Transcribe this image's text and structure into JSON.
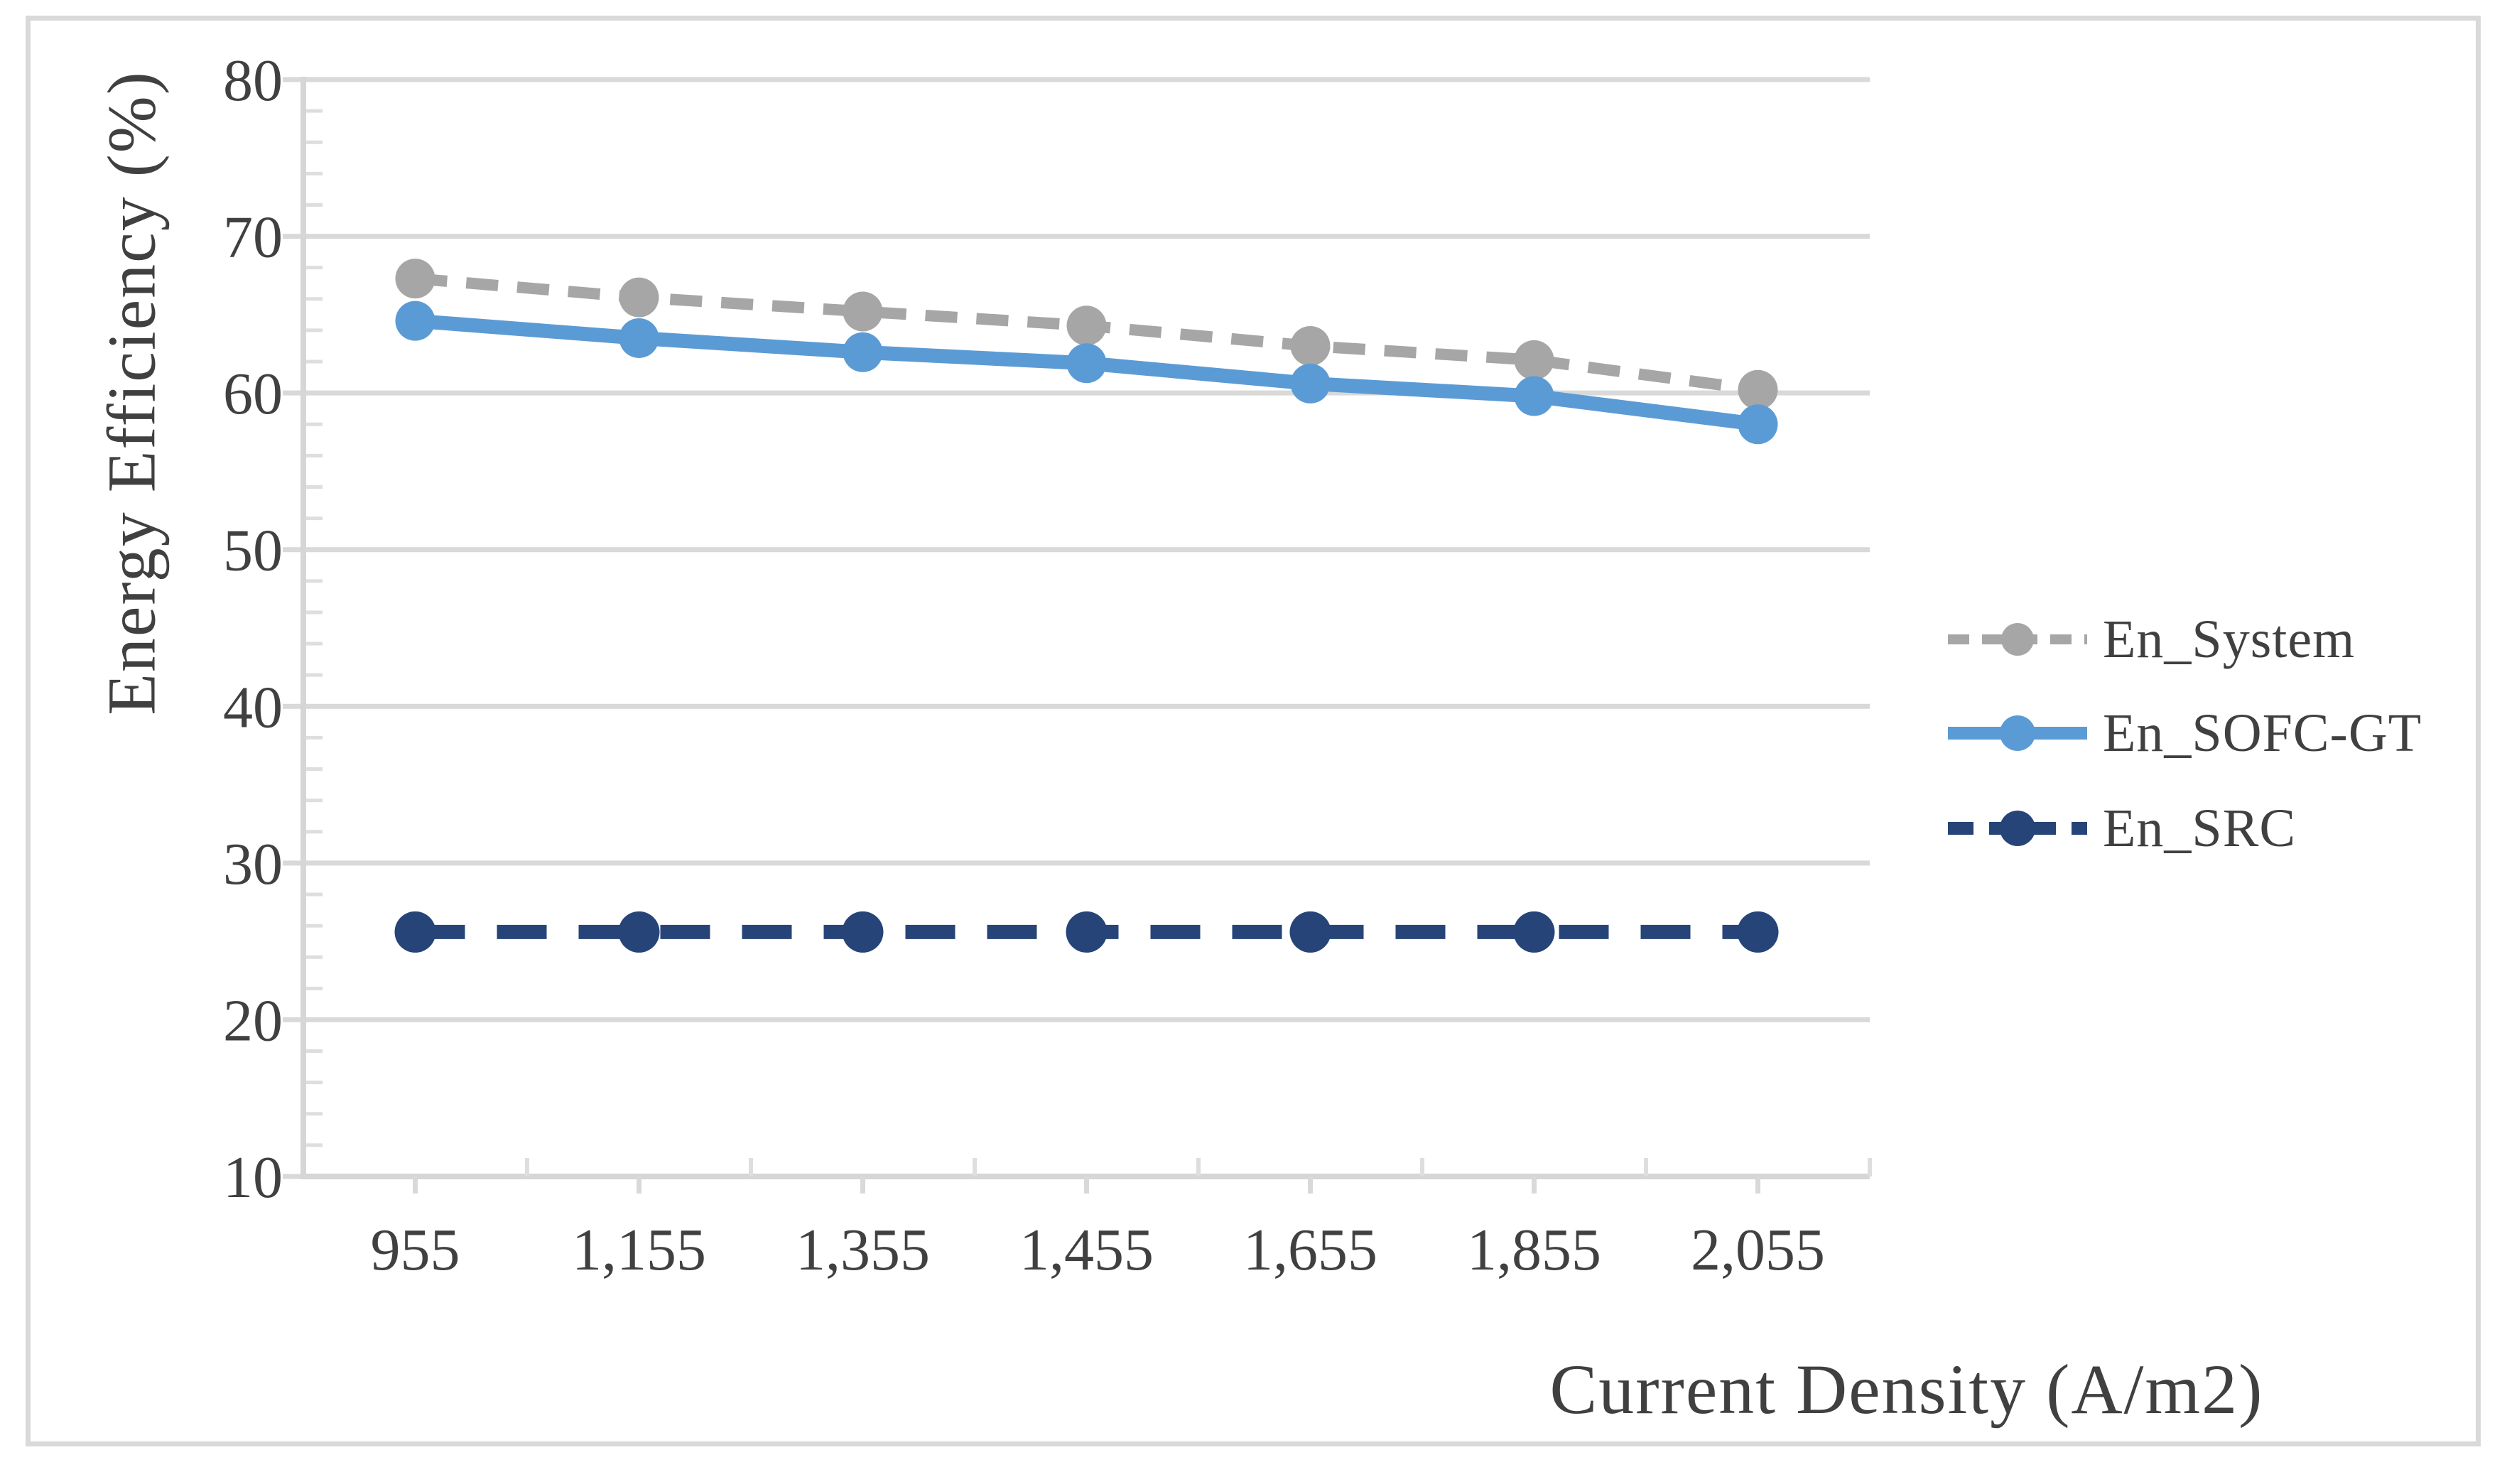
{
  "chart_data": {
    "type": "line",
    "title": "",
    "xlabel": "Current Density (A/m2)",
    "ylabel": "Energy Efficiency (%)",
    "categories": [
      "955",
      "1,155",
      "1,355",
      "1,455",
      "1,655",
      "1,855",
      "2,055"
    ],
    "ylim": [
      10,
      80
    ],
    "ytick_step": 10,
    "yminor_step": 2,
    "grid": "horizontal-major",
    "legend_position": "right",
    "series": [
      {
        "name": "En_System",
        "color": "#a6a6a6",
        "line_style": "dashed",
        "marker": "circle",
        "values": [
          67.3,
          66.1,
          65.2,
          64.3,
          63.0,
          62.1,
          60.2
        ]
      },
      {
        "name": "En_SOFC-GT",
        "color": "#5b9bd5",
        "line_style": "solid",
        "marker": "circle",
        "values": [
          64.6,
          63.5,
          62.6,
          61.9,
          60.6,
          59.8,
          58.0
        ]
      },
      {
        "name": "En_SRC",
        "color": "#264478",
        "line_style": "dashed",
        "marker": "circle",
        "values": [
          25.6,
          25.6,
          25.6,
          25.6,
          25.6,
          25.6,
          25.6
        ]
      }
    ]
  },
  "style": {
    "frame_border_color": "#d9d9d9",
    "gridline_color": "#d9d9d9",
    "axis_color": "#d6d6d6",
    "minor_tick_color": "#dedede",
    "text_color": "#404040"
  }
}
